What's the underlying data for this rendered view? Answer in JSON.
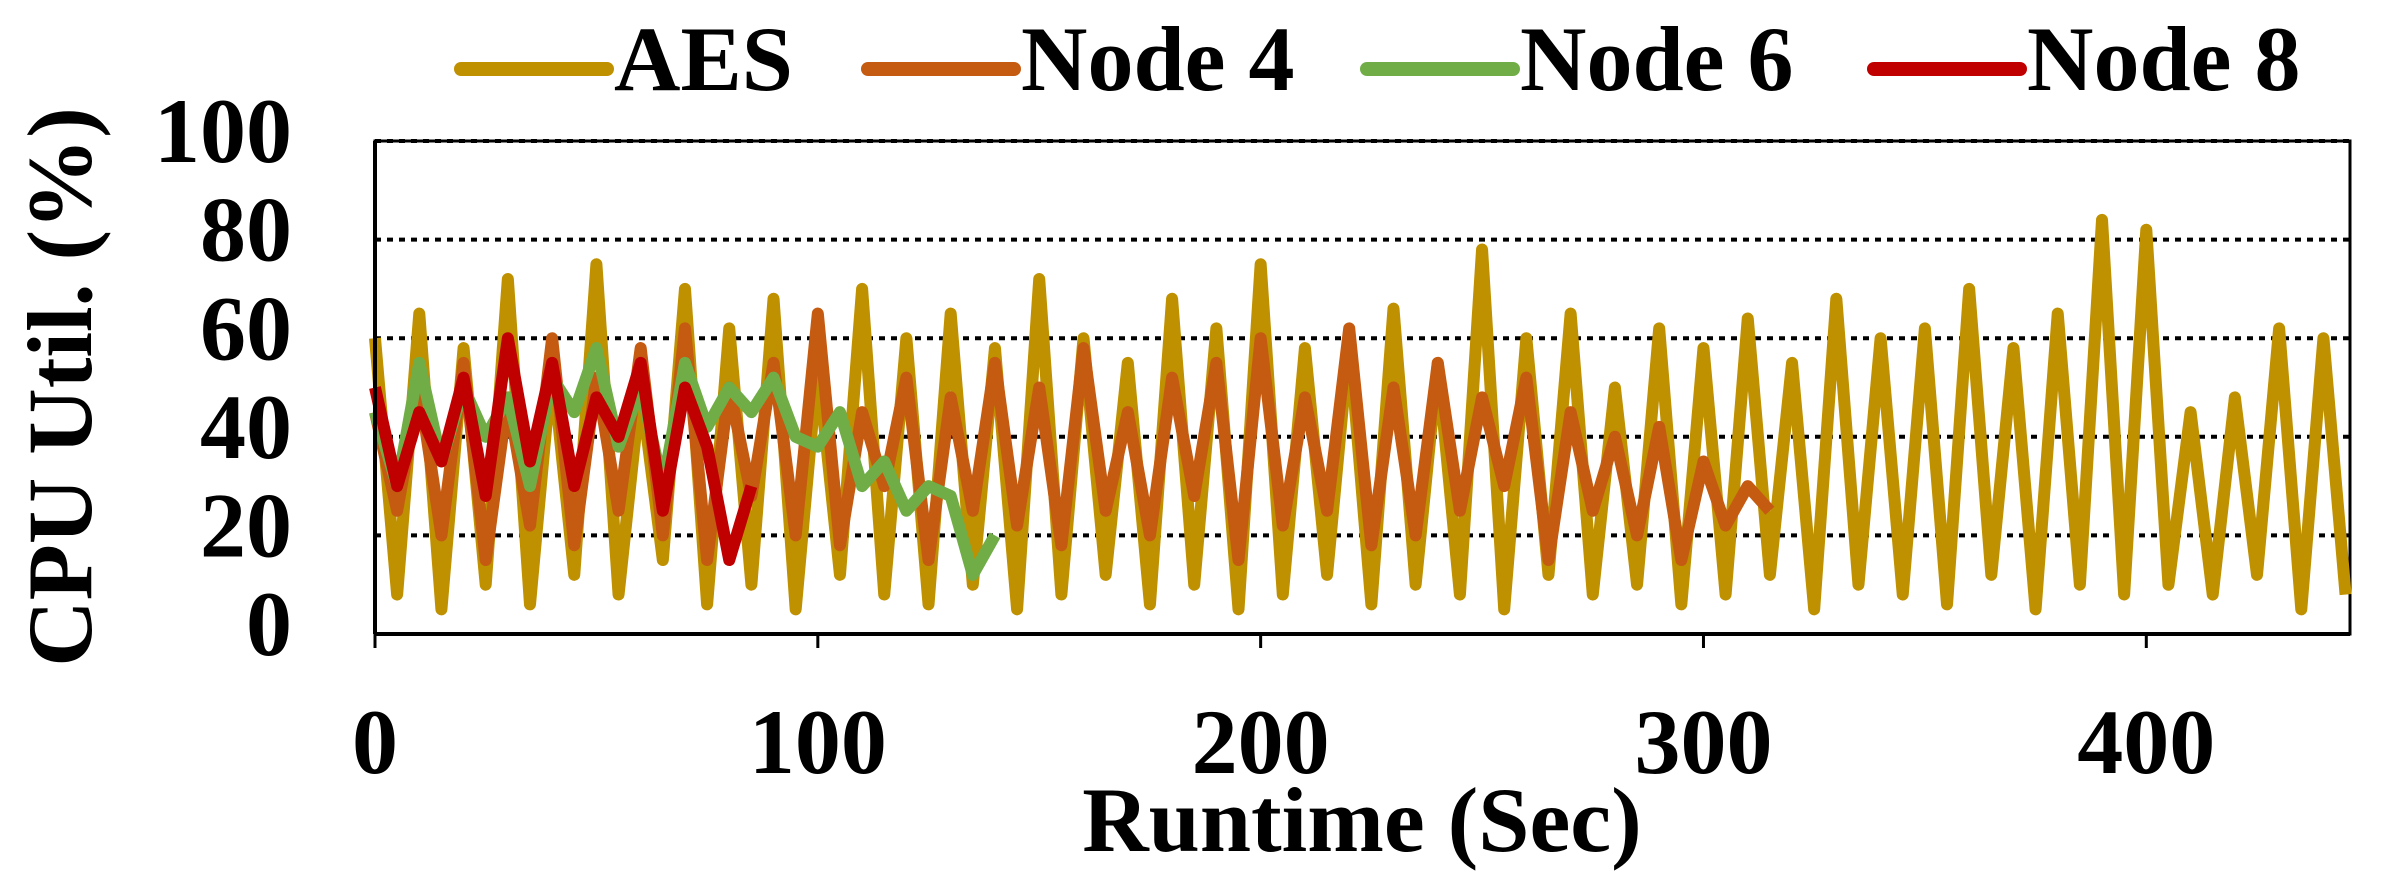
{
  "chart_data": {
    "type": "line",
    "xlabel": "Runtime (Sec)",
    "ylabel": "CPU Util. (%)",
    "xlim": [
      0,
      446
    ],
    "xticks": [
      0,
      100,
      200,
      300,
      400
    ],
    "ylim": [
      0,
      100
    ],
    "yticks": [
      0,
      20,
      40,
      60,
      80,
      100
    ],
    "grid": true,
    "series": [
      {
        "name": "AES",
        "color": "#BF9000",
        "x": [
          0,
          5,
          10,
          15,
          20,
          25,
          30,
          35,
          40,
          45,
          50,
          55,
          60,
          65,
          70,
          75,
          80,
          85,
          90,
          95,
          100,
          105,
          110,
          115,
          120,
          125,
          130,
          135,
          140,
          145,
          150,
          155,
          160,
          165,
          170,
          175,
          180,
          185,
          190,
          195,
          200,
          205,
          210,
          215,
          220,
          225,
          230,
          235,
          240,
          245,
          250,
          255,
          260,
          265,
          270,
          275,
          280,
          285,
          290,
          295,
          300,
          305,
          310,
          315,
          320,
          325,
          330,
          335,
          340,
          345,
          350,
          355,
          360,
          365,
          370,
          375,
          380,
          385,
          390,
          395,
          400,
          405,
          410,
          415,
          420,
          425,
          430,
          435,
          440,
          445
        ],
        "values": [
          60,
          8,
          65,
          5,
          58,
          10,
          72,
          6,
          55,
          12,
          75,
          8,
          50,
          15,
          70,
          6,
          62,
          10,
          68,
          5,
          55,
          12,
          70,
          8,
          60,
          6,
          65,
          10,
          58,
          5,
          72,
          8,
          60,
          12,
          55,
          6,
          68,
          10,
          62,
          5,
          75,
          8,
          58,
          12,
          60,
          6,
          66,
          10,
          55,
          8,
          78,
          5,
          60,
          12,
          65,
          8,
          50,
          10,
          62,
          6,
          58,
          8,
          64,
          12,
          55,
          5,
          68,
          10,
          60,
          8,
          62,
          6,
          70,
          12,
          58,
          5,
          65,
          10,
          84,
          8,
          82,
          10,
          45,
          8,
          48,
          12,
          62,
          5,
          60,
          8
        ]
      },
      {
        "name": "Node 4",
        "color": "#C55A11",
        "x": [
          0,
          5,
          10,
          15,
          20,
          25,
          30,
          35,
          40,
          45,
          50,
          55,
          60,
          65,
          70,
          75,
          80,
          85,
          90,
          95,
          100,
          105,
          110,
          115,
          120,
          125,
          130,
          135,
          140,
          145,
          150,
          155,
          160,
          165,
          170,
          175,
          180,
          185,
          190,
          195,
          200,
          205,
          210,
          215,
          220,
          225,
          230,
          235,
          240,
          245,
          250,
          255,
          260,
          265,
          270,
          275,
          280,
          285,
          290,
          295,
          300,
          305,
          310,
          315
        ],
        "values": [
          45,
          25,
          50,
          20,
          55,
          15,
          48,
          22,
          60,
          18,
          52,
          25,
          58,
          20,
          62,
          15,
          50,
          28,
          55,
          20,
          65,
          18,
          45,
          30,
          52,
          15,
          48,
          25,
          55,
          22,
          50,
          18,
          58,
          25,
          45,
          20,
          52,
          28,
          55,
          15,
          60,
          22,
          48,
          25,
          62,
          18,
          50,
          20,
          55,
          25,
          48,
          30,
          52,
          15,
          45,
          25,
          40,
          20,
          42,
          15,
          35,
          22,
          30,
          25
        ]
      },
      {
        "name": "Node 6",
        "color": "#70AD47",
        "x": [
          0,
          5,
          10,
          15,
          20,
          25,
          30,
          35,
          40,
          45,
          50,
          55,
          60,
          65,
          70,
          75,
          80,
          85,
          90,
          95,
          100,
          105,
          110,
          115,
          120,
          125,
          130,
          135,
          140
        ],
        "values": [
          45,
          30,
          55,
          35,
          50,
          40,
          48,
          30,
          52,
          45,
          58,
          38,
          50,
          30,
          55,
          42,
          50,
          45,
          52,
          40,
          38,
          45,
          30,
          35,
          25,
          30,
          28,
          12,
          20
        ]
      },
      {
        "name": "Node 8",
        "color": "#C00000",
        "x": [
          0,
          5,
          10,
          15,
          20,
          25,
          30,
          35,
          40,
          45,
          50,
          55,
          60,
          65,
          70,
          75,
          80,
          85
        ],
        "values": [
          50,
          30,
          45,
          35,
          52,
          28,
          60,
          35,
          55,
          30,
          48,
          40,
          55,
          25,
          50,
          38,
          15,
          30
        ]
      }
    ]
  }
}
